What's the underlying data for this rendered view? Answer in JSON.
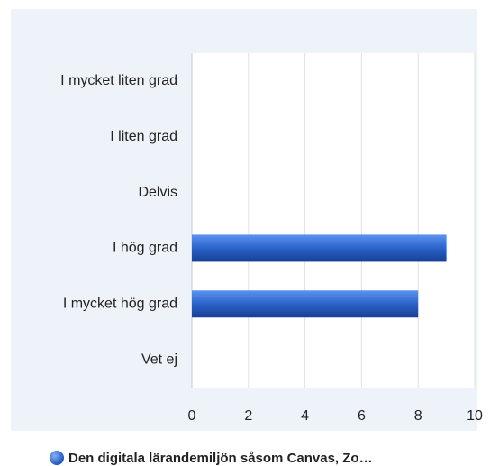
{
  "chart_data": {
    "type": "bar",
    "orientation": "horizontal",
    "categories": [
      "I mycket liten grad",
      "I liten grad",
      "Delvis",
      "I hög grad",
      "I mycket hög grad",
      "Vet ej"
    ],
    "series": [
      {
        "name": "Den digitala lärandemiljön såsom Canvas, Zo…",
        "color": "#2a63c9",
        "values": [
          0,
          0,
          0,
          9,
          8,
          0
        ]
      }
    ],
    "xlim": [
      0,
      10
    ],
    "xticks": [
      0,
      2,
      4,
      6,
      8,
      10
    ],
    "grid": true,
    "legend": "bottom"
  }
}
